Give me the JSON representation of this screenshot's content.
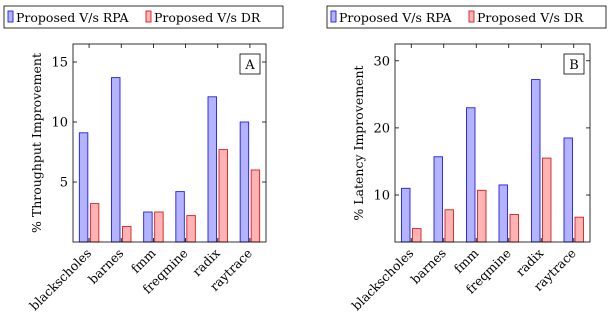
{
  "legend_labels": [
    "Proposed V/s RPA",
    "Proposed V/s DR"
  ],
  "colors": {
    "rpa_fill": "#b3b3ff",
    "rpa_stroke": "#1f1fe0",
    "dr_fill": "#ffb3b3",
    "dr_stroke": "#d21f1f"
  },
  "chart_data": [
    {
      "type": "bar",
      "panel_label": "A",
      "title": "",
      "xlabel": "",
      "ylabel": "% Throughput Improvement",
      "categories": [
        "blackscholes",
        "barnes",
        "fmm",
        "freqmine",
        "radix",
        "raytrace"
      ],
      "series": [
        {
          "name": "Proposed V/s RPA",
          "values": [
            9.1,
            13.7,
            2.5,
            4.2,
            12.1,
            10.0
          ]
        },
        {
          "name": "Proposed V/s DR",
          "values": [
            3.2,
            1.3,
            2.5,
            2.2,
            7.7,
            6.0
          ]
        }
      ],
      "ylim": [
        0,
        16.5
      ],
      "yticks": [
        5,
        10,
        15
      ],
      "grid": false,
      "legend_position": "top"
    },
    {
      "type": "bar",
      "panel_label": "B",
      "title": "",
      "xlabel": "",
      "ylabel": "% Latency Improvement",
      "categories": [
        "blackscholes",
        "barnes",
        "fmm",
        "freqmine",
        "radix",
        "raytrace"
      ],
      "series": [
        {
          "name": "Proposed V/s RPA",
          "values": [
            11.0,
            15.7,
            23.0,
            11.5,
            27.2,
            18.5
          ]
        },
        {
          "name": "Proposed V/s DR",
          "values": [
            5.0,
            7.8,
            10.7,
            7.1,
            15.5,
            6.7
          ]
        }
      ],
      "ylim": [
        3,
        32.5
      ],
      "yticks": [
        10,
        20,
        30
      ],
      "grid": false,
      "legend_position": "top"
    }
  ]
}
